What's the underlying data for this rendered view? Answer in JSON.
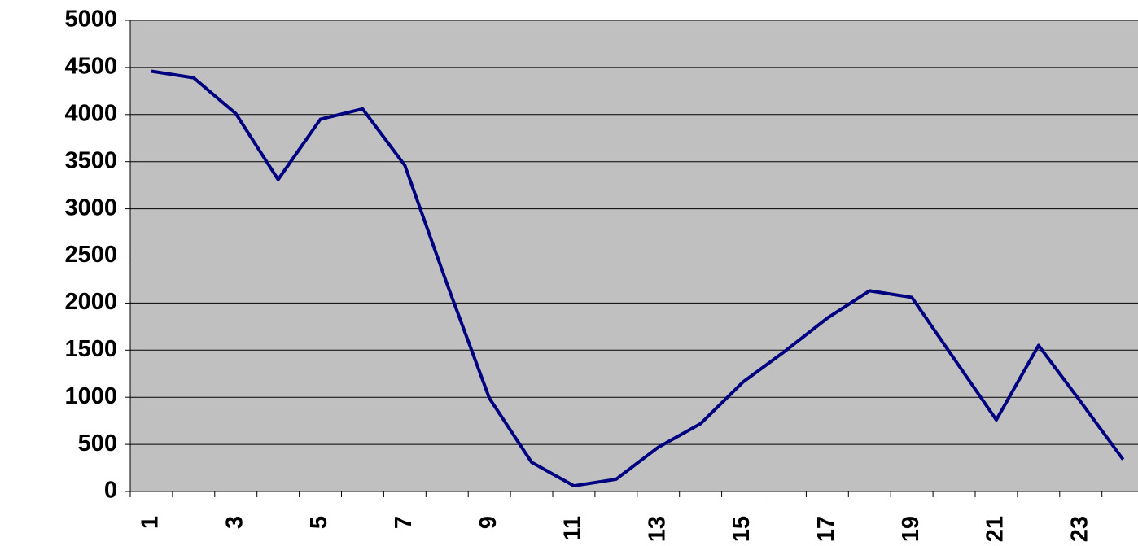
{
  "chart_data": {
    "type": "line",
    "categories": [
      "1",
      null,
      "3",
      null,
      "5",
      null,
      "7",
      null,
      "9",
      null,
      "11",
      null,
      "13",
      null,
      "15",
      null,
      "17",
      null,
      "19",
      null,
      "21",
      null,
      "23",
      null
    ],
    "series": [
      {
        "color": "#000080",
        "values": [
          4460,
          4390,
          4010,
          3310,
          3950,
          4060,
          3460,
          2200,
          990,
          310,
          60,
          130,
          470,
          720,
          1160,
          1490,
          1840,
          2130,
          2060,
          1410,
          760,
          1550,
          950,
          340
        ]
      }
    ],
    "ylim": [
      0,
      5000
    ],
    "yticks": [
      0,
      500,
      1000,
      1500,
      2000,
      2500,
      3000,
      3500,
      4000,
      4500,
      5000
    ],
    "grid": true,
    "plot_background": "#c0c0c0"
  }
}
